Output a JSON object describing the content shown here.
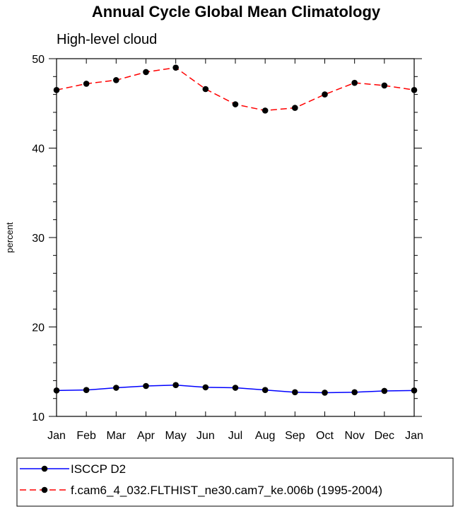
{
  "chart_data": {
    "type": "line",
    "title": "Annual Cycle Global Mean Climatology",
    "subtitle": "High-level cloud",
    "xlabel": "",
    "ylabel": "percent",
    "categories": [
      "Jan",
      "Feb",
      "Mar",
      "Apr",
      "May",
      "Jun",
      "Jul",
      "Aug",
      "Sep",
      "Oct",
      "Nov",
      "Dec",
      "Jan"
    ],
    "ylim": [
      10,
      50
    ],
    "yticks": [
      10,
      20,
      30,
      40,
      50
    ],
    "grid": false,
    "legend_position": "bottom",
    "series": [
      {
        "name": "ISCCP D2",
        "color": "#0000ff",
        "line_style": "solid",
        "marker": "circle",
        "values": [
          12.9,
          12.95,
          13.2,
          13.4,
          13.5,
          13.25,
          13.2,
          12.95,
          12.7,
          12.65,
          12.7,
          12.85,
          12.9
        ]
      },
      {
        "name": "f.cam6_4_032.FLTHIST_ne30.cam7_ke.006b (1995-2004)",
        "color": "#ff0000",
        "line_style": "dashed",
        "marker": "circle",
        "values": [
          46.5,
          47.2,
          47.6,
          48.5,
          49.0,
          46.6,
          44.9,
          44.2,
          44.5,
          46.0,
          47.3,
          47.0,
          46.5
        ]
      }
    ]
  }
}
